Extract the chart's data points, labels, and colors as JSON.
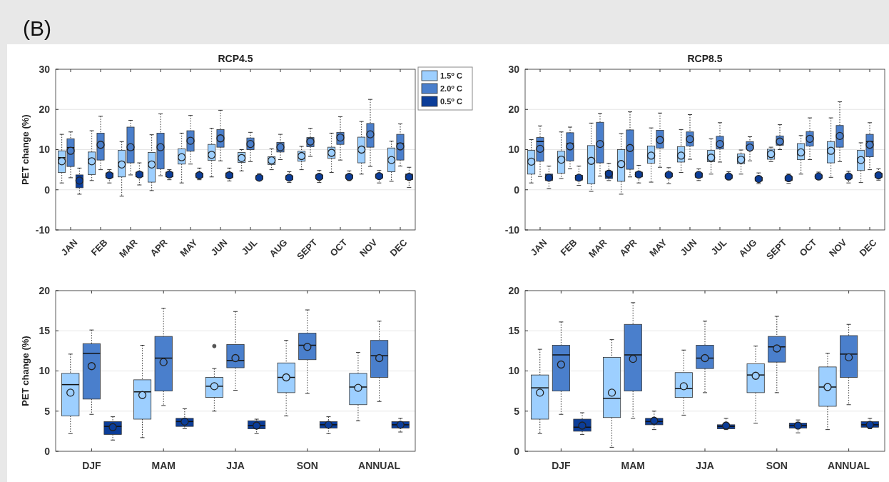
{
  "chart_data": [
    {
      "type": "box",
      "title": "RCP4.5",
      "ylabel": "PET change (%)",
      "annotations": [
        "(B)"
      ],
      "categories": [
        "JAN",
        "FEB",
        "MAR",
        "APR",
        "MAY",
        "JUN",
        "JUL",
        "AUG",
        "SEPT",
        "OCT",
        "NOV",
        "DEC"
      ],
      "ylim": [
        -10,
        30
      ],
      "yticks": [
        -10,
        0,
        10,
        20,
        30
      ],
      "grid": "y",
      "legend": "top right",
      "series": [
        {
          "name": "1.5$^{o}$ C",
          "color": "#9dcfff",
          "boxes": [
            {
              "low": 1.7,
              "q1": 4.3,
              "median": 8,
              "q3": 9.7,
              "high": 13.8,
              "mean": 7.1
            },
            {
              "low": 2.3,
              "q1": 3.8,
              "median": 7,
              "q3": 9.4,
              "high": 14.7,
              "mean": 7.1
            },
            {
              "low": -1.6,
              "q1": 3.2,
              "median": 6,
              "q3": 9.8,
              "high": 12,
              "mean": 6.3
            },
            {
              "low": -0.2,
              "q1": 1.9,
              "median": 6,
              "q3": 9.3,
              "high": 13.7,
              "mean": 6.3
            },
            {
              "low": 1.7,
              "q1": 6.4,
              "median": 8,
              "q3": 10.2,
              "high": 14.1,
              "mean": 8.1
            },
            {
              "low": 3.2,
              "q1": 7.3,
              "median": 8.5,
              "q3": 11.3,
              "high": 15.3,
              "mean": 8.7
            },
            {
              "low": 4.7,
              "q1": 6.8,
              "median": 8,
              "q3": 9.3,
              "high": 10,
              "mean": 7.9
            },
            {
              "low": 5,
              "q1": 6.3,
              "median": 7.3,
              "q3": 8.2,
              "high": 10.2,
              "mean": 7.3
            },
            {
              "low": 5,
              "q1": 7.1,
              "median": 8.3,
              "q3": 9.6,
              "high": 10.8,
              "mean": 8.4
            },
            {
              "low": 4.3,
              "q1": 7.8,
              "median": 9,
              "q3": 10.6,
              "high": 14.1,
              "mean": 9.2
            },
            {
              "low": 3.9,
              "q1": 6.7,
              "median": 10,
              "q3": 13.1,
              "high": 17,
              "mean": 10
            },
            {
              "low": 2.1,
              "q1": 4.5,
              "median": 7.5,
              "q3": 10.4,
              "high": 12.1,
              "mean": 7.4
            }
          ]
        },
        {
          "name": "2.0$^{o}$ C",
          "color": "#4a7fcc",
          "boxes": [
            {
              "low": 3,
              "q1": 5.8,
              "median": 10.5,
              "q3": 12.7,
              "high": 14.4,
              "mean": 9.7
            },
            {
              "low": 5,
              "q1": 7.4,
              "median": 11,
              "q3": 14.1,
              "high": 18.3,
              "mean": 11.2
            },
            {
              "low": 3.7,
              "q1": 6.7,
              "median": 10,
              "q3": 15.6,
              "high": 17.3,
              "mean": 10.6
            },
            {
              "low": 3.5,
              "q1": 5.2,
              "median": 11,
              "q3": 14.1,
              "high": 18.9,
              "mean": 10.6
            },
            {
              "low": 6.4,
              "q1": 9.6,
              "median": 12,
              "q3": 14.7,
              "high": 18.5,
              "mean": 12.2
            },
            {
              "low": 7.2,
              "q1": 10.6,
              "median": 13,
              "q3": 15,
              "high": 19.8,
              "mean": 12.8
            },
            {
              "low": 7,
              "q1": 10,
              "median": 11,
              "q3": 12.9,
              "high": 14.3,
              "mean": 11.4
            },
            {
              "low": 7.5,
              "q1": 9.4,
              "median": 10.5,
              "q3": 11.8,
              "high": 13.8,
              "mean": 10.6
            },
            {
              "low": 8.3,
              "q1": 10.7,
              "median": 12,
              "q3": 13,
              "high": 15.3,
              "mean": 12
            },
            {
              "low": 7.4,
              "q1": 11.3,
              "median": 13.5,
              "q3": 14.3,
              "high": 18.2,
              "mean": 13
            },
            {
              "low": 5.8,
              "q1": 10.6,
              "median": 14,
              "q3": 16.5,
              "high": 22.5,
              "mean": 13.8
            },
            {
              "low": 5.9,
              "q1": 7.4,
              "median": 11.5,
              "q3": 13.8,
              "high": 16.4,
              "mean": 10.8
            }
          ]
        },
        {
          "name": "0.5$^{o}$ C",
          "color": "#0b3d99",
          "boxes": [
            {
              "low": -1.1,
              "q1": 0.5,
              "median": 2.5,
              "q3": 3.7,
              "high": 5.4,
              "mean": 2.3
            },
            {
              "low": 1.7,
              "q1": 3,
              "median": 3.7,
              "q3": 4.2,
              "high": 5,
              "mean": 3.6
            },
            {
              "low": 1.2,
              "q1": 3.2,
              "median": 3.8,
              "q3": 4.4,
              "high": 6.7,
              "mean": 3.8
            },
            {
              "low": 2.5,
              "q1": 3.2,
              "median": 3.8,
              "q3": 4.4,
              "high": 5,
              "mean": 3.8
            },
            {
              "low": 2.5,
              "q1": 3.1,
              "median": 3.6,
              "q3": 4.1,
              "high": 5.4,
              "mean": 3.6
            },
            {
              "low": 2.2,
              "q1": 3,
              "median": 3.6,
              "q3": 4.2,
              "high": 5.4,
              "mean": 3.6
            },
            {
              "low": 2.3,
              "q1": 2.6,
              "median": 3,
              "q3": 3.5,
              "high": 4,
              "mean": 3
            },
            {
              "low": 1.8,
              "q1": 2.5,
              "median": 3,
              "q3": 3.5,
              "high": 4.5,
              "mean": 3
            },
            {
              "low": 1.8,
              "q1": 2.7,
              "median": 3.2,
              "q3": 3.7,
              "high": 4.8,
              "mean": 3.2
            },
            {
              "low": 2.3,
              "q1": 2.8,
              "median": 3.2,
              "q3": 3.7,
              "high": 4.7,
              "mean": 3.2
            },
            {
              "low": 1.7,
              "q1": 2.9,
              "median": 3.4,
              "q3": 3.9,
              "high": 4.8,
              "mean": 3.4
            },
            {
              "low": 0.6,
              "q1": 2.5,
              "median": 3.2,
              "q3": 3.9,
              "high": 5.6,
              "mean": 3.2
            }
          ]
        }
      ]
    },
    {
      "type": "box",
      "title": "RCP8.5",
      "categories": [
        "JAN",
        "FEB",
        "MAR",
        "APR",
        "MAY",
        "JUN",
        "JUL",
        "AUG",
        "SEPT",
        "OCT",
        "NOV",
        "DEC"
      ],
      "ylim": [
        -10,
        30
      ],
      "yticks": [
        -10,
        0,
        10,
        20,
        30
      ],
      "grid": "y",
      "series": [
        {
          "color": "#9dcfff",
          "boxes": [
            {
              "low": 1.7,
              "q1": 3.9,
              "median": 7,
              "q3": 9.8,
              "high": 12.5,
              "mean": 7
            },
            {
              "low": 2.8,
              "q1": 4.1,
              "median": 7.5,
              "q3": 9.6,
              "high": 14.4,
              "mean": 7.5
            },
            {
              "low": -0.4,
              "q1": 1.5,
              "median": 7,
              "q3": 11,
              "high": 16.6,
              "mean": 7.2
            },
            {
              "low": -1.1,
              "q1": 2.1,
              "median": 6.5,
              "q3": 10,
              "high": 14,
              "mean": 6.4
            },
            {
              "low": 1.9,
              "q1": 6.6,
              "median": 8.5,
              "q3": 10.9,
              "high": 15.4,
              "mean": 8.5
            },
            {
              "low": 4.3,
              "q1": 6.9,
              "median": 8.5,
              "q3": 10.7,
              "high": 15,
              "mean": 8.5
            },
            {
              "low": 3.9,
              "q1": 7,
              "median": 8,
              "q3": 9.8,
              "high": 12.7,
              "mean": 8
            },
            {
              "low": 3.9,
              "q1": 6.5,
              "median": 7.5,
              "q3": 8.9,
              "high": 9.9,
              "mean": 7.5
            },
            {
              "low": 7,
              "q1": 7.6,
              "median": 9,
              "q3": 10.1,
              "high": 10.6,
              "mean": 8.9
            },
            {
              "low": 3.9,
              "q1": 7.5,
              "median": 9.5,
              "q3": 11.5,
              "high": 13.5,
              "mean": 9.3
            },
            {
              "low": 3.1,
              "q1": 6.7,
              "median": 10,
              "q3": 12,
              "high": 17.9,
              "mean": 9.7
            },
            {
              "low": 1.8,
              "q1": 4.8,
              "median": 7.5,
              "q3": 9.8,
              "high": 11.7,
              "mean": 7.4
            }
          ]
        },
        {
          "color": "#4a7fcc",
          "boxes": [
            {
              "low": 3.3,
              "q1": 7.1,
              "median": 12,
              "q3": 13,
              "high": 15.9,
              "mean": 10.2
            },
            {
              "low": 5.2,
              "q1": 7.2,
              "median": 11.5,
              "q3": 14.2,
              "high": 15.6,
              "mean": 10.8
            },
            {
              "low": 3.4,
              "q1": 6.7,
              "median": 11.5,
              "q3": 16.8,
              "high": 19,
              "mean": 11.4
            },
            {
              "low": 3.2,
              "q1": 5.1,
              "median": 10.5,
              "q3": 14.9,
              "high": 19.4,
              "mean": 10.4
            },
            {
              "low": 5.6,
              "q1": 10.4,
              "median": 12.5,
              "q3": 14.8,
              "high": 19.1,
              "mean": 12.4
            },
            {
              "low": 7.6,
              "q1": 10.9,
              "median": 12.5,
              "q3": 14.4,
              "high": 18.7,
              "mean": 12.6
            },
            {
              "low": 6.9,
              "q1": 10.2,
              "median": 11.5,
              "q3": 13.3,
              "high": 16.7,
              "mean": 11.4
            },
            {
              "low": 7.2,
              "q1": 10.2,
              "median": 11,
              "q3": 12,
              "high": 13.2,
              "mean": 10.5
            },
            {
              "low": 10,
              "q1": 11.1,
              "median": 12,
              "q3": 13.4,
              "high": 16.2,
              "mean": 12
            },
            {
              "low": 7.5,
              "q1": 10.9,
              "median": 13,
              "q3": 14.5,
              "high": 17.9,
              "mean": 12.7
            },
            {
              "low": 7,
              "q1": 10.6,
              "median": 13.5,
              "q3": 16,
              "high": 21.9,
              "mean": 13.4
            },
            {
              "low": 5,
              "q1": 8.2,
              "median": 12,
              "q3": 13.8,
              "high": 16.7,
              "mean": 11.2
            }
          ]
        },
        {
          "color": "#0b3d99",
          "boxes": [
            {
              "low": 0.3,
              "q1": 2.3,
              "median": 3,
              "q3": 3.9,
              "high": 5.9,
              "mean": 3
            },
            {
              "low": 1.1,
              "q1": 2.4,
              "median": 3,
              "q3": 3.6,
              "high": 5.9,
              "mean": 3
            },
            {
              "low": 2.3,
              "q1": 2.8,
              "median": 4,
              "q3": 4.6,
              "high": 6.6,
              "mean": 4
            },
            {
              "low": 1.7,
              "q1": 3.2,
              "median": 3.8,
              "q3": 4.4,
              "high": 6.1,
              "mean": 3.8
            },
            {
              "low": 1.5,
              "q1": 3.2,
              "median": 3.7,
              "q3": 4.2,
              "high": 5.5,
              "mean": 3.7
            },
            {
              "low": 2.3,
              "q1": 3.1,
              "median": 3.7,
              "q3": 4.2,
              "high": 5.2,
              "mean": 3.7
            },
            {
              "low": 2.5,
              "q1": 2.8,
              "median": 3.3,
              "q3": 3.7,
              "high": 4.5,
              "mean": 3.3
            },
            {
              "low": 1.5,
              "q1": 2.2,
              "median": 2.7,
              "q3": 3.1,
              "high": 4.2,
              "mean": 2.7
            },
            {
              "low": 1.6,
              "q1": 2.3,
              "median": 2.9,
              "q3": 3.3,
              "high": 3.9,
              "mean": 2.9
            },
            {
              "low": 2.6,
              "q1": 2.8,
              "median": 3.3,
              "q3": 3.7,
              "high": 4.4,
              "mean": 3.3
            },
            {
              "low": 1.7,
              "q1": 2.8,
              "median": 3.3,
              "q3": 3.7,
              "high": 4.6,
              "mean": 3.3
            },
            {
              "low": 2.4,
              "q1": 3.1,
              "median": 3.6,
              "q3": 4.1,
              "high": 5.2,
              "mean": 3.6
            }
          ]
        }
      ]
    },
    {
      "type": "box",
      "ylabel": "PET change (%)",
      "categories": [
        "DJF",
        "MAM",
        "JJA",
        "SON",
        "ANNUAL"
      ],
      "ylim": [
        0,
        20
      ],
      "yticks": [
        0,
        5,
        10,
        15,
        20
      ],
      "grid": "y",
      "series": [
        {
          "color": "#9dcfff",
          "boxes": [
            {
              "low": 2.2,
              "q1": 4.4,
              "median": 8.3,
              "q3": 9.7,
              "high": 12.1,
              "mean": 7.3
            },
            {
              "low": 1.7,
              "q1": 4,
              "median": 7.4,
              "q3": 8.9,
              "high": 13.2,
              "mean": 7
            },
            {
              "low": 5,
              "q1": 6.7,
              "median": 8.1,
              "q3": 9.2,
              "high": 10.3,
              "mean": 8.1,
              "outliers": [
                13.1
              ]
            },
            {
              "low": 4.4,
              "q1": 7.3,
              "median": 9.2,
              "q3": 11,
              "high": 13.8,
              "mean": 9.2
            },
            {
              "low": 3.8,
              "q1": 5.8,
              "median": 8,
              "q3": 9.7,
              "high": 12.3,
              "mean": 7.9
            }
          ]
        },
        {
          "color": "#4a7fcc",
          "boxes": [
            {
              "low": 4.6,
              "q1": 6.5,
              "median": 12.2,
              "q3": 13.4,
              "high": 15.1,
              "mean": 10.6
            },
            {
              "low": 5.7,
              "q1": 7.5,
              "median": 11.6,
              "q3": 14.3,
              "high": 17.8,
              "mean": 11.1
            },
            {
              "low": 7.6,
              "q1": 10.4,
              "median": 11.3,
              "q3": 13.3,
              "high": 17.4,
              "mean": 11.6
            },
            {
              "low": 7.2,
              "q1": 11.4,
              "median": 13.2,
              "q3": 14.7,
              "high": 17.6,
              "mean": 13
            },
            {
              "low": 6.2,
              "q1": 9.2,
              "median": 11.9,
              "q3": 13.8,
              "high": 16.2,
              "mean": 11.6
            }
          ]
        },
        {
          "color": "#0b3d99",
          "boxes": [
            {
              "low": 1.4,
              "q1": 2.1,
              "median": 3.1,
              "q3": 3.7,
              "high": 4.3,
              "mean": 3
            },
            {
              "low": 2.8,
              "q1": 3.1,
              "median": 3.7,
              "q3": 4.1,
              "high": 5.3,
              "mean": 3.7
            },
            {
              "low": 2.2,
              "q1": 2.8,
              "median": 3.2,
              "q3": 3.8,
              "high": 4,
              "mean": 3.2
            },
            {
              "low": 2.2,
              "q1": 2.9,
              "median": 3.3,
              "q3": 3.7,
              "high": 4.3,
              "mean": 3.3
            },
            {
              "low": 2.4,
              "q1": 2.9,
              "median": 3.3,
              "q3": 3.7,
              "high": 4.1,
              "mean": 3.3
            }
          ]
        }
      ]
    },
    {
      "type": "box",
      "categories": [
        "DJF",
        "MAM",
        "JJA",
        "SON",
        "ANNUAL"
      ],
      "ylim": [
        0,
        20
      ],
      "yticks": [
        0,
        5,
        10,
        15,
        20
      ],
      "grid": "y",
      "series": [
        {
          "color": "#9dcfff",
          "boxes": [
            {
              "low": 2.2,
              "q1": 4,
              "median": 7.9,
              "q3": 9.5,
              "high": 12.7,
              "mean": 7.3
            },
            {
              "low": 0.5,
              "q1": 4.2,
              "median": 6.6,
              "q3": 11.7,
              "high": 13.9,
              "mean": 7.3
            },
            {
              "low": 4.5,
              "q1": 6.7,
              "median": 7.8,
              "q3": 9.8,
              "high": 12.6,
              "mean": 8.1
            },
            {
              "low": 3.5,
              "q1": 7.3,
              "median": 9.5,
              "q3": 10.9,
              "high": 13.1,
              "mean": 9.4
            },
            {
              "low": 2.7,
              "q1": 5.6,
              "median": 8,
              "q3": 10.5,
              "high": 12.2,
              "mean": 8
            }
          ]
        },
        {
          "color": "#4a7fcc",
          "boxes": [
            {
              "low": 4.6,
              "q1": 7.5,
              "median": 12,
              "q3": 13.2,
              "high": 16.1,
              "mean": 10.8
            },
            {
              "low": 4.1,
              "q1": 7.5,
              "median": 12,
              "q3": 15.8,
              "high": 18.5,
              "mean": 11.5
            },
            {
              "low": 7.3,
              "q1": 10.3,
              "median": 11.6,
              "q3": 13.2,
              "high": 16.2,
              "mean": 11.6
            },
            {
              "low": 7.3,
              "q1": 11.1,
              "median": 13,
              "q3": 14.3,
              "high": 16.8,
              "mean": 12.8
            },
            {
              "low": 5.8,
              "q1": 9.2,
              "median": 12.1,
              "q3": 14.4,
              "high": 15.8,
              "mean": 11.7
            }
          ]
        },
        {
          "color": "#0b3d99",
          "boxes": [
            {
              "low": 2.1,
              "q1": 2.5,
              "median": 3,
              "q3": 4,
              "high": 4.8,
              "mean": 3.2
            },
            {
              "low": 2.7,
              "q1": 3.3,
              "median": 3.7,
              "q3": 4.1,
              "high": 5,
              "mean": 3.8
            },
            {
              "low": 2.7,
              "q1": 2.8,
              "median": 3.1,
              "q3": 3.3,
              "high": 4.1,
              "mean": 3.2
            },
            {
              "low": 2.3,
              "q1": 2.9,
              "median": 3.2,
              "q3": 3.5,
              "high": 3.9,
              "mean": 3.2
            },
            {
              "low": 2.8,
              "q1": 3,
              "median": 3.3,
              "q3": 3.7,
              "high": 4.1,
              "mean": 3.3
            }
          ]
        }
      ]
    }
  ]
}
